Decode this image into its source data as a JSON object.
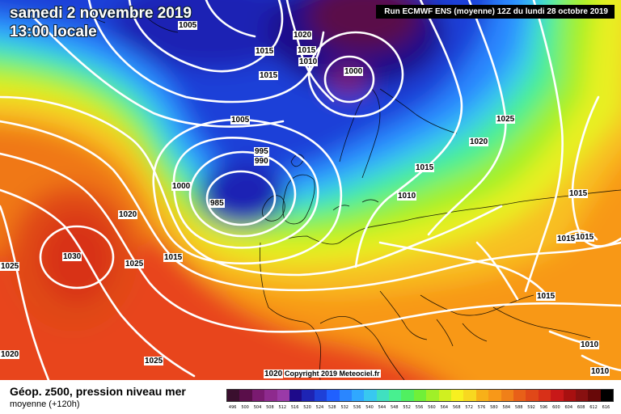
{
  "header": {
    "date_line1": "samedi 2 novembre 2019",
    "date_line2": "13:00 locale",
    "run_info": "Run ECMWF ENS (moyenne) 12Z du lundi 28 octobre 2019"
  },
  "isobars": [
    {
      "id": "a",
      "label": "1005"
    },
    {
      "id": "b",
      "label": "1020"
    },
    {
      "id": "c",
      "label": "1015"
    },
    {
      "id": "d",
      "label": "1015"
    },
    {
      "id": "e",
      "label": "1010"
    },
    {
      "id": "f",
      "label": "1015"
    },
    {
      "id": "g",
      "label": "1000"
    },
    {
      "id": "h",
      "label": "1005"
    },
    {
      "id": "i",
      "label": "1025"
    },
    {
      "id": "j",
      "label": "1020"
    },
    {
      "id": "k",
      "label": "995"
    },
    {
      "id": "l",
      "label": "990"
    },
    {
      "id": "m",
      "label": "1015"
    },
    {
      "id": "n",
      "label": "1000"
    },
    {
      "id": "o",
      "label": "985"
    },
    {
      "id": "p",
      "label": "1010"
    },
    {
      "id": "q",
      "label": "1015"
    },
    {
      "id": "r",
      "label": "1020"
    },
    {
      "id": "s",
      "label": "1015"
    },
    {
      "id": "t",
      "label": "1015"
    },
    {
      "id": "u",
      "label": "1030"
    },
    {
      "id": "v",
      "label": "1025"
    },
    {
      "id": "w",
      "label": "1015"
    },
    {
      "id": "x",
      "label": "1025"
    },
    {
      "id": "y",
      "label": "1015"
    },
    {
      "id": "z",
      "label": "1020"
    },
    {
      "id": "aa",
      "label": "1025"
    },
    {
      "id": "ab",
      "label": "1010"
    },
    {
      "id": "ac",
      "label": "1010"
    },
    {
      "id": "ad",
      "label": "1020"
    }
  ],
  "footer": {
    "copyright": "Copyright 2019 Meteociel.fr",
    "param_title": "Géop. z500, pression niveau mer",
    "param_sub": "moyenne  (+120h)"
  },
  "scale": {
    "labels": [
      "496",
      "500",
      "504",
      "508",
      "512",
      "516",
      "520",
      "524",
      "528",
      "532",
      "536",
      "540",
      "544",
      "548",
      "552",
      "556",
      "560",
      "564",
      "568",
      "572",
      "576",
      "580",
      "584",
      "588",
      "592",
      "596",
      "600",
      "604",
      "608",
      "612",
      "616"
    ],
    "colors": [
      "#3a0f2e",
      "#5a0e4a",
      "#7a1a70",
      "#8e2a8e",
      "#9a3aa8",
      "#1e0a8a",
      "#1e24b4",
      "#1e40d8",
      "#2060ff",
      "#2a86ff",
      "#30a8ff",
      "#38c8f0",
      "#40e0c0",
      "#48f090",
      "#50f060",
      "#70f038",
      "#a0f028",
      "#d0f020",
      "#f8f020",
      "#f8d820",
      "#f8b018",
      "#f89818",
      "#f08018",
      "#e86018",
      "#e04818",
      "#d83018",
      "#c81818",
      "#a81010",
      "#881010",
      "#680808",
      "#000000"
    ]
  }
}
